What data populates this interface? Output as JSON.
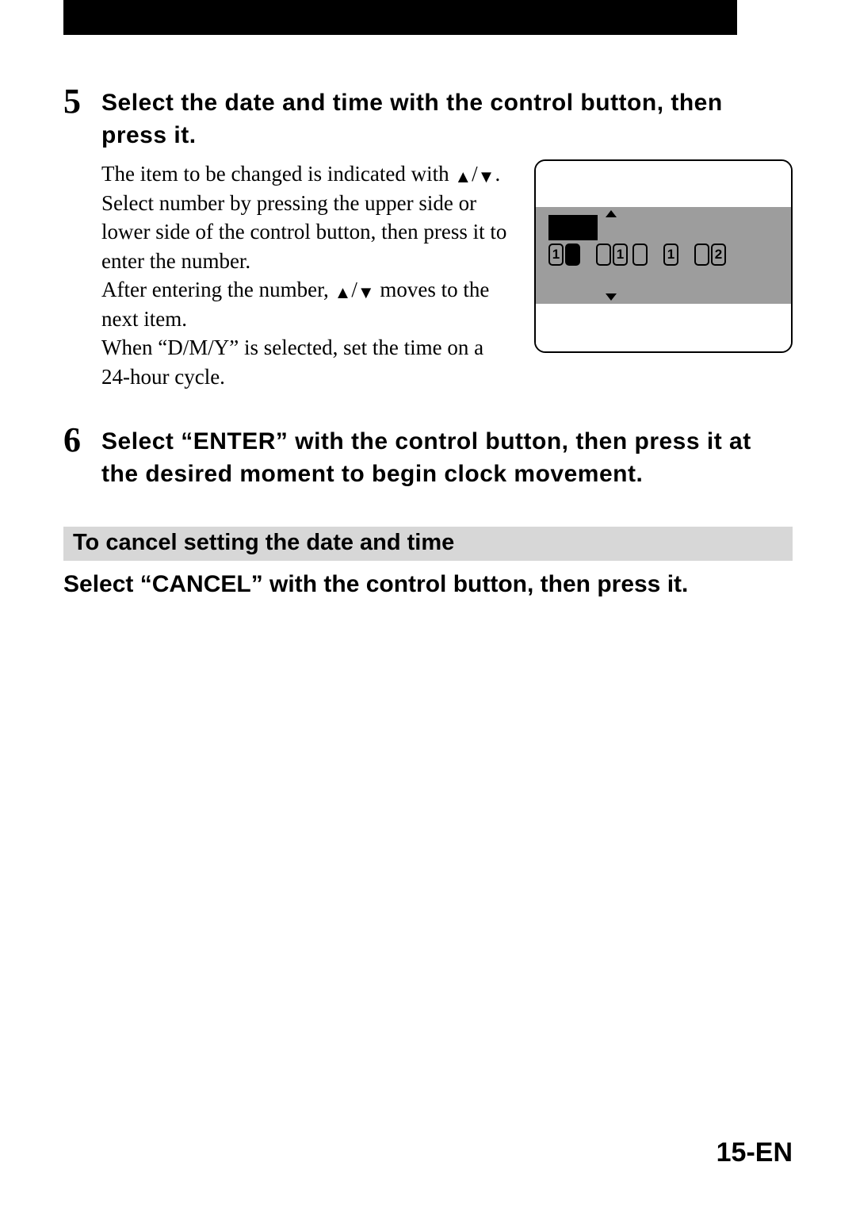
{
  "step5": {
    "number": "5",
    "title": "Select the date and time with the control button, then press it.",
    "para1a": "The item to be changed is indicated with ",
    "para1b": ". Select number by pressing the upper side or lower side of the control button, then press it to enter the number.",
    "para2a": "After entering the number, ",
    "para2b": " moves to the next item.",
    "para3": "When “D/M/Y” is selected, set the time on a 24-hour cycle."
  },
  "step6": {
    "number": "6",
    "title": "Select “ENTER” with the control button, then press it at the desired moment to begin clock movement."
  },
  "cancel_heading": "To cancel setting the date and time",
  "cancel_text": "Select “CANCEL” with the control button, then press it.",
  "page_number": "15-EN",
  "lcd": {
    "groups": [
      {
        "d1": "1",
        "d2": ""
      },
      {
        "d1": "",
        "d2": "1"
      },
      {
        "d1": "",
        "d2": ""
      },
      {
        "d1": "1",
        "d2": ""
      },
      {
        "d1": "",
        "d2": "2"
      }
    ],
    "bg_mid": "#9d9d9d"
  },
  "glyphs": {
    "up": "▲",
    "down": "▼",
    "slash": "/"
  }
}
